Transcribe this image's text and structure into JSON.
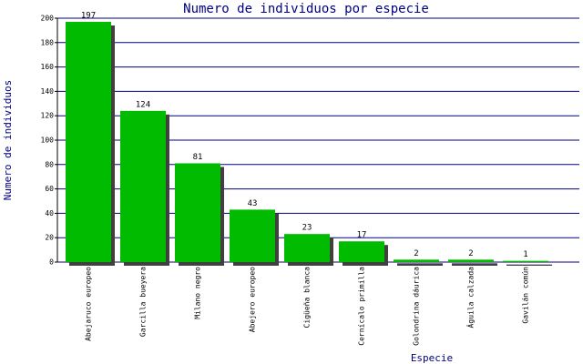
{
  "chart_data": {
    "type": "bar",
    "title": "Numero de individuos por especie",
    "x_label": "Especie",
    "y_label": "Numero de individuos",
    "categories": [
      "Abejaruco europeo",
      "Garcilla bueyera",
      "Milano negro",
      "Abejero europeo",
      "Cigüeña blanca",
      "Cernícalo primilla",
      "Golondrina dáurica",
      "Águila calzada",
      "Gavilán común"
    ],
    "values": [
      197,
      124,
      81,
      43,
      23,
      17,
      2,
      2,
      1
    ],
    "color": "#00bb00",
    "shadow_color": "#404040",
    "ylim": [
      0,
      200
    ],
    "yticks": [
      0,
      20,
      40,
      60,
      80,
      100,
      120,
      140,
      160,
      180,
      200
    ],
    "grid": true
  }
}
